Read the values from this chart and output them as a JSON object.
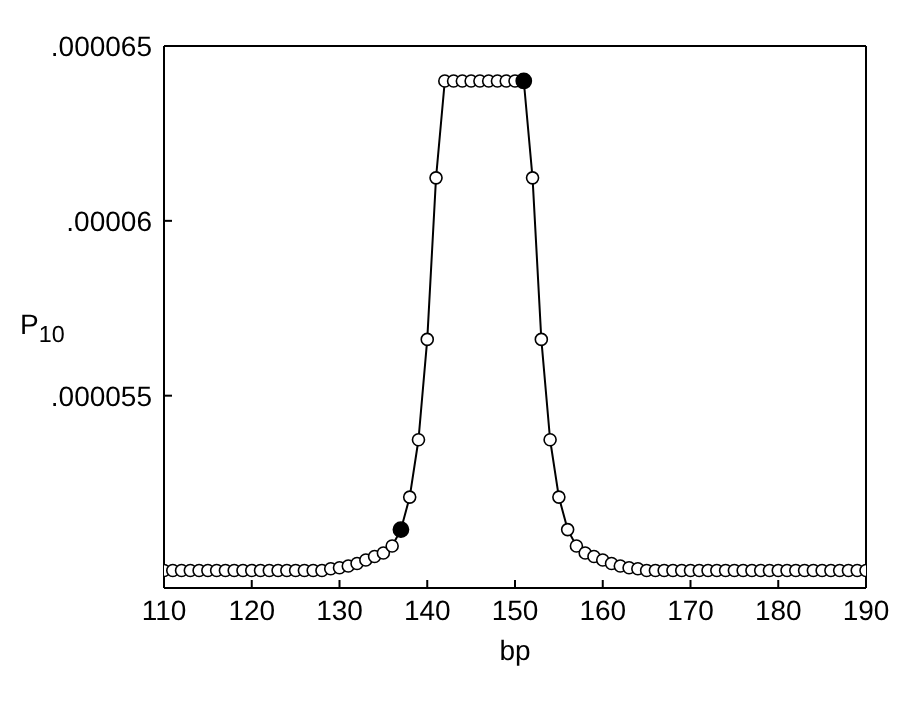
{
  "chart_data": {
    "type": "line",
    "xlabel": "bp",
    "ylabel": "P$_{10}$",
    "xlim": [
      110,
      190
    ],
    "xticks": [
      110,
      120,
      130,
      140,
      150,
      160,
      170,
      180,
      190
    ],
    "ylim": [
      4.95e-05,
      6.5e-05
    ],
    "yticks": [
      {
        "value": 5.5e-05,
        "label": ".000055"
      },
      {
        "value": 6e-05,
        "label": ".00006"
      },
      {
        "value": 6.5e-05,
        "label": ".000065"
      }
    ],
    "legend": false,
    "marker": "circle",
    "line_style": "solid",
    "series": [
      {
        "color": "#000000",
        "x": [
          110,
          111,
          112,
          113,
          114,
          115,
          116,
          117,
          118,
          119,
          120,
          121,
          122,
          123,
          124,
          125,
          126,
          127,
          128,
          129,
          130,
          131,
          132,
          133,
          134,
          135,
          136,
          137,
          138,
          139,
          140,
          141,
          142,
          143,
          144,
          145,
          146,
          147,
          148,
          149,
          150,
          151,
          152,
          153,
          154,
          155,
          156,
          157,
          158,
          159,
          160,
          161,
          162,
          163,
          164,
          165,
          166,
          167,
          168,
          169,
          170,
          171,
          172,
          173,
          174,
          175,
          176,
          177,
          178,
          179,
          180,
          181,
          182,
          183,
          184,
          185,
          186,
          187,
          188,
          189,
          190
        ],
        "values": [
          5e-05,
          5e-05,
          5e-05,
          5e-05,
          5e-05,
          5e-05,
          5e-05,
          5e-05,
          5e-05,
          5e-05,
          5e-05,
          5e-05,
          5e-05,
          5e-05,
          5e-05,
          5e-05,
          5e-05,
          5e-05,
          5e-05,
          5.005e-05,
          5.008e-05,
          5.013e-05,
          5.02e-05,
          5.03e-05,
          5.04e-05,
          5.05e-05,
          5.07e-05,
          5.117e-05,
          5.21e-05,
          5.374e-05,
          5.661e-05,
          6.123e-05,
          6.4e-05,
          6.4e-05,
          6.4e-05,
          6.4e-05,
          6.4e-05,
          6.4e-05,
          6.4e-05,
          6.4e-05,
          6.4e-05,
          6.4e-05,
          6.123e-05,
          5.661e-05,
          5.374e-05,
          5.21e-05,
          5.117e-05,
          5.07e-05,
          5.05e-05,
          5.04e-05,
          5.03e-05,
          5.02e-05,
          5.013e-05,
          5.008e-05,
          5.005e-05,
          5e-05,
          5e-05,
          5e-05,
          5e-05,
          5e-05,
          5e-05,
          5e-05,
          5e-05,
          5e-05,
          5e-05,
          5e-05,
          5e-05,
          5e-05,
          5e-05,
          5e-05,
          5e-05,
          5e-05,
          5e-05,
          5e-05,
          5e-05,
          5e-05,
          5e-05,
          5e-05,
          5e-05,
          5e-05,
          5e-05
        ]
      },
      {
        "type": "scatter",
        "color": "#000000",
        "x": [
          137,
          151
        ],
        "values": [
          5.117e-05,
          6.4e-05
        ]
      }
    ]
  }
}
